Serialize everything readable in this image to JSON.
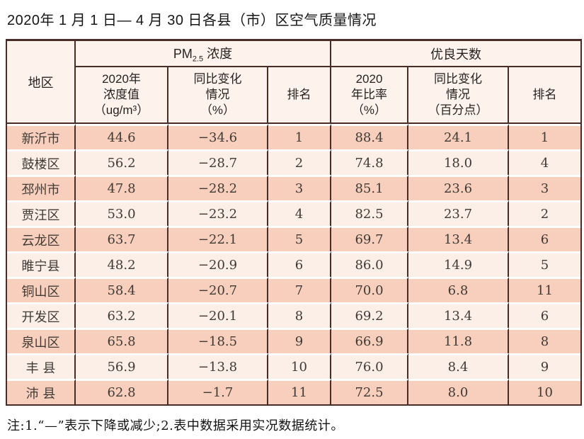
{
  "title": "2020年 1 月 1 日— 4 月 30 日各县（市）区空气质量情况",
  "note": "注:1.“—”表示下降或减少;2.表中数据采用实况数据统计。",
  "colors": {
    "border": "#4a2c26",
    "row_dark": "#f8cfbc",
    "row_light": "#fcefe7",
    "header_bg": "#fdf3ec",
    "text": "#403a35"
  },
  "table": {
    "header": {
      "region": "地区",
      "pm25": {
        "prefix": "PM",
        "sub": "2.5",
        "suffix": " 浓度"
      },
      "good_days": "优良天数",
      "sub": {
        "pm_value": "2020年\n浓度值\n（ug/m³）",
        "pm_change": "同比变化\n情况\n（%）",
        "pm_rank": "排名",
        "good_ratio": "2020\n年比率\n（%）",
        "good_change": "同比变化\n情况\n（百分点）",
        "good_rank": "排名"
      }
    },
    "rows": [
      {
        "region": "新沂市",
        "pm_value": "44.6",
        "pm_change": "−34.6",
        "pm_rank": "1",
        "good_ratio": "88.4",
        "good_change": "24.1",
        "good_rank": "1"
      },
      {
        "region": "鼓楼区",
        "pm_value": "56.2",
        "pm_change": "−28.7",
        "pm_rank": "2",
        "good_ratio": "74.8",
        "good_change": "18.0",
        "good_rank": "4"
      },
      {
        "region": "邳州市",
        "pm_value": "47.8",
        "pm_change": "−28.2",
        "pm_rank": "3",
        "good_ratio": "85.1",
        "good_change": "23.6",
        "good_rank": "3"
      },
      {
        "region": "贾汪区",
        "pm_value": "53.0",
        "pm_change": "−23.2",
        "pm_rank": "4",
        "good_ratio": "82.5",
        "good_change": "23.7",
        "good_rank": "2"
      },
      {
        "region": "云龙区",
        "pm_value": "63.7",
        "pm_change": "−22.1",
        "pm_rank": "5",
        "good_ratio": "69.7",
        "good_change": "13.4",
        "good_rank": "6"
      },
      {
        "region": "睢宁县",
        "pm_value": "48.2",
        "pm_change": "−20.9",
        "pm_rank": "6",
        "good_ratio": "86.0",
        "good_change": "14.9",
        "good_rank": "5"
      },
      {
        "region": "铜山区",
        "pm_value": "58.4",
        "pm_change": "−20.7",
        "pm_rank": "7",
        "good_ratio": "70.0",
        "good_change": "6.8",
        "good_rank": "11"
      },
      {
        "region": "开发区",
        "pm_value": "63.2",
        "pm_change": "−20.1",
        "pm_rank": "8",
        "good_ratio": "69.2",
        "good_change": "13.4",
        "good_rank": "6"
      },
      {
        "region": "泉山区",
        "pm_value": "65.8",
        "pm_change": "−18.5",
        "pm_rank": "9",
        "good_ratio": "66.9",
        "good_change": "11.8",
        "good_rank": "8"
      },
      {
        "region": "丰 县",
        "pm_value": "56.9",
        "pm_change": "−13.8",
        "pm_rank": "10",
        "good_ratio": "76.0",
        "good_change": "8.4",
        "good_rank": "9"
      },
      {
        "region": "沛 县",
        "pm_value": "62.8",
        "pm_change": "−1.7",
        "pm_rank": "11",
        "good_ratio": "72.5",
        "good_change": "8.0",
        "good_rank": "10"
      }
    ]
  }
}
